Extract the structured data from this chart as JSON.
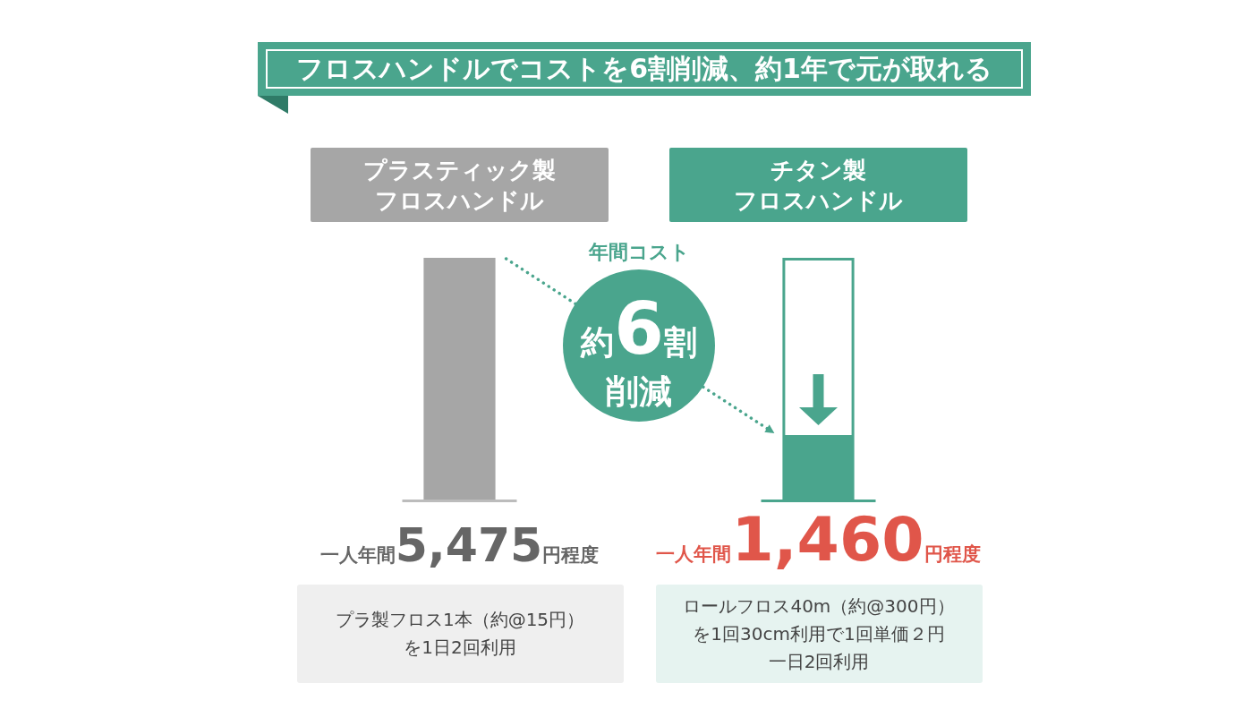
{
  "chart_data": {
    "type": "bar",
    "title": "フロスハンドルでコストを6割削減、約1年で元が取れる",
    "categories": [
      "プラスティック製フロスハンドル",
      "チタン製フロスハンドル"
    ],
    "values": [
      5475,
      1460
    ],
    "colors": [
      "#a6a6a6",
      "#4aa58d"
    ],
    "value_labels": [
      "一人年間5,475円程度",
      "一人年間1,460円程度"
    ],
    "tick_labels": "x",
    "annotations": [
      "年間コスト",
      "約6割削減",
      "プラ製フロス1本（約@15円）を1日2回利用",
      "ロールフロス40m（約@300円）を1回30cm利用で1回単価２円一日2回利用"
    ]
  }
}
